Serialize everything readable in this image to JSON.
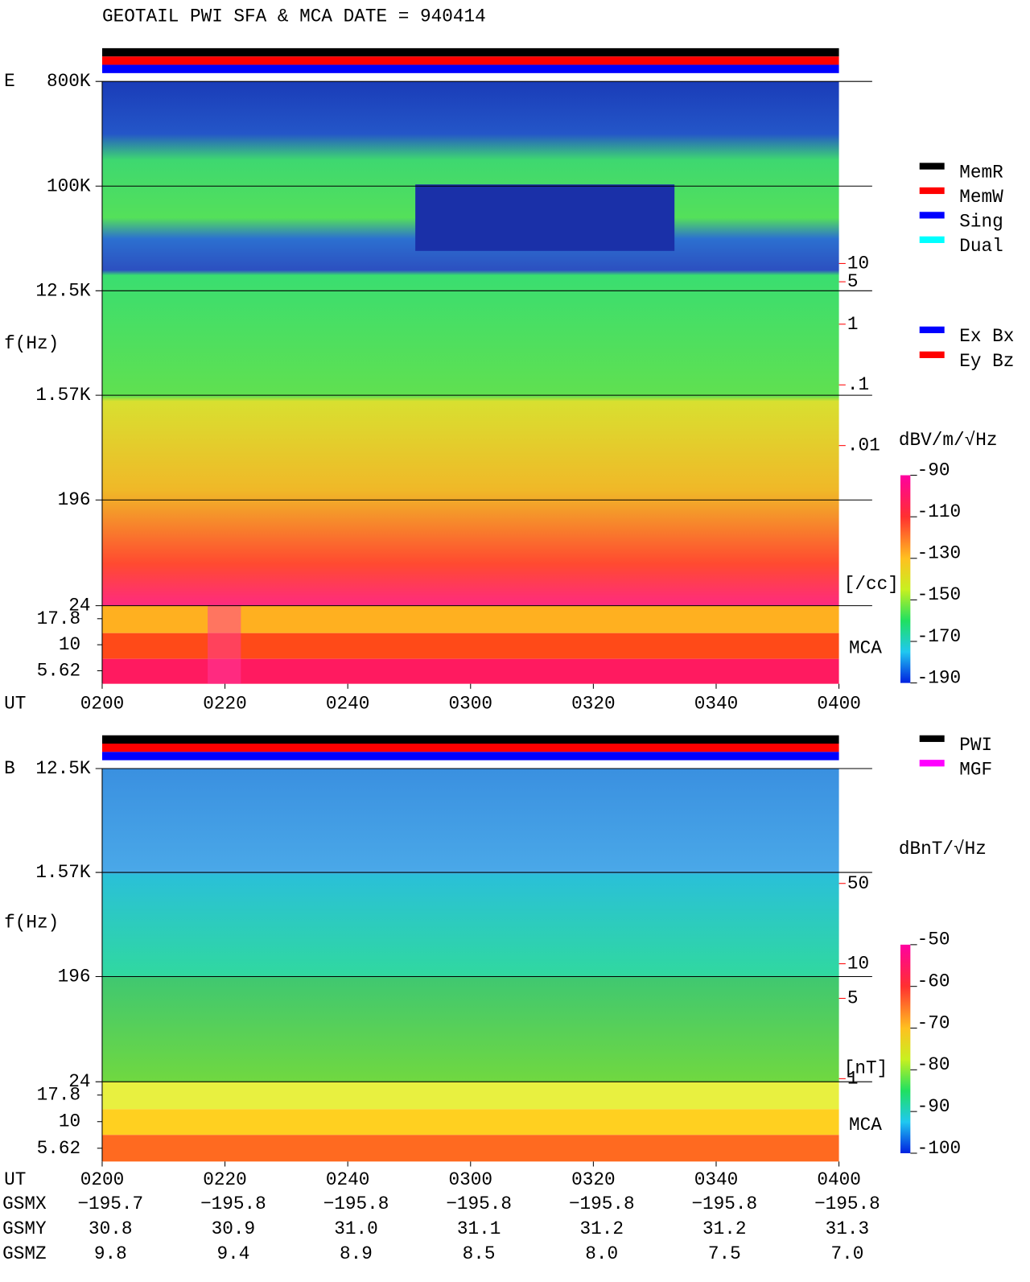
{
  "title": "GEOTAIL  PWI SFA & MCA   DATE = 940414",
  "chart_data": [
    {
      "type": "spectrogram",
      "label": "E",
      "ylabel": "f(Hz)",
      "xlabel": "UT",
      "log_y": true,
      "ylim": [
        24,
        800000
      ],
      "yticks": [
        {
          "value": 800000,
          "label": "800K"
        },
        {
          "value": 100000,
          "label": "100K"
        },
        {
          "value": 12500,
          "label": "12.5K"
        },
        {
          "value": 1570,
          "label": "1.57K"
        },
        196,
        24
      ],
      "mca_label": "MCA",
      "mca_channels": [
        17.8,
        10,
        5.62
      ],
      "categories": [
        "0200",
        "0220",
        "0240",
        "0300",
        "0320",
        "0340",
        "0400"
      ],
      "y2lim": [
        2.3e-05,
        10000
      ],
      "y2ticks": [
        10,
        5,
        1,
        {
          "value": 0.1,
          "label": ".1"
        },
        {
          "value": 0.01,
          "label": ".01"
        }
      ],
      "y2label": "[/cc]",
      "y2color": "#ff0000",
      "status_legend": [
        {
          "name": "MemR",
          "color": "#000000"
        },
        {
          "name": "MemW",
          "color": "#ff0000"
        },
        {
          "name": "Sing",
          "color": "#0000ff"
        },
        {
          "name": "Dual",
          "color": "#00ffff"
        }
      ],
      "component_legend": [
        {
          "name": "Ex Bx",
          "color": "#0000ff"
        },
        {
          "name": "Ey Bz",
          "color": "#ff0000"
        }
      ],
      "colorbar": {
        "label": "dBV/m/√Hz",
        "lim": [
          -190,
          -90
        ],
        "ticks": [
          -90,
          -110,
          -130,
          -150,
          -170,
          -190
        ]
      }
    },
    {
      "type": "spectrogram",
      "label": "B",
      "ylabel": "f(Hz)",
      "xlabel": "UT",
      "log_y": true,
      "ylim": [
        24,
        12500
      ],
      "yticks": [
        {
          "value": 12500,
          "label": "12.5K"
        },
        {
          "value": 1570,
          "label": "1.57K"
        },
        196,
        24
      ],
      "mca_label": "MCA",
      "mca_channels": [
        17.8,
        10,
        5.62
      ],
      "categories": [
        "0200",
        "0220",
        "0240",
        "0300",
        "0320",
        "0340",
        "0400"
      ],
      "y2lim": [
        0.94,
        500
      ],
      "y2ticks": [
        50,
        10,
        5,
        1
      ],
      "y2label": "[nT]",
      "y2color": "#ff0000",
      "status_legend": [
        {
          "name": "PWI",
          "color": "#000000"
        },
        {
          "name": "MGF",
          "color": "#ff00ff"
        }
      ],
      "colorbar": {
        "label": "dBnT/√Hz",
        "lim": [
          -100,
          -50
        ],
        "ticks": [
          -50,
          -60,
          -70,
          -80,
          -90,
          -100
        ]
      }
    }
  ],
  "orbit": {
    "labels": [
      "GSMX",
      "GSMY",
      "GSMZ"
    ],
    "values": [
      [
        "−195.7",
        "−195.8",
        "−195.8",
        "−195.8",
        "−195.8",
        "−195.8",
        "−195.8"
      ],
      [
        "30.8",
        "30.9",
        "31.0",
        "31.1",
        "31.2",
        "31.2",
        "31.3"
      ],
      [
        "9.8",
        "9.4",
        "8.9",
        "8.5",
        "8.0",
        "7.5",
        "7.0"
      ]
    ]
  }
}
